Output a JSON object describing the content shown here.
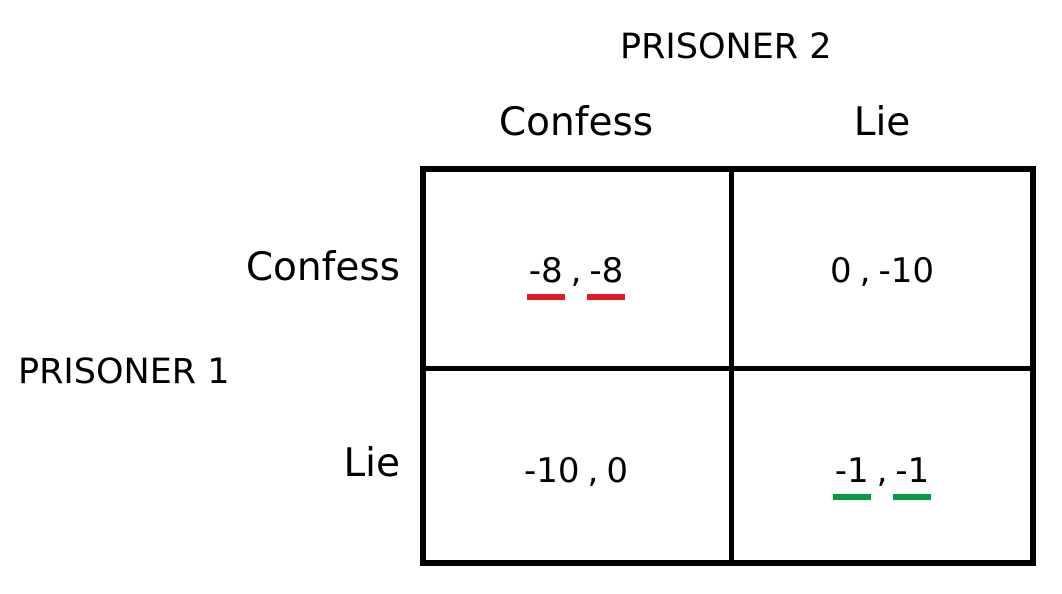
{
  "prisoner2": {
    "title": "PRISONER 2",
    "strategies": [
      "Confess",
      "Lie"
    ]
  },
  "prisoner1": {
    "title": "PRISONER 1",
    "strategies": [
      "Confess",
      "Lie"
    ]
  },
  "separator": ",",
  "matrix": {
    "confess_confess": {
      "p1": "-8",
      "p2": "-8",
      "highlight": "#e21b23"
    },
    "confess_lie": {
      "p1": "0",
      "p2": "-10"
    },
    "lie_confess": {
      "p1": "-10",
      "p2": "0"
    },
    "lie_lie": {
      "p1": "-1",
      "p2": "-1",
      "highlight": "#0a9a44"
    }
  }
}
